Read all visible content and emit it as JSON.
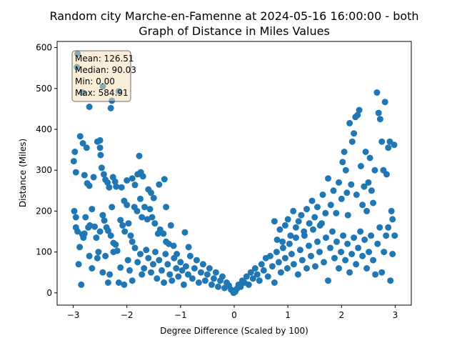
{
  "chart_data": {
    "type": "scatter",
    "title_line1": "Random city Marche-en-Famenne at 2024-05-16 16:00:00  - both",
    "title_line2": "Graph of Distance in Miles Values",
    "xlabel": "Degree Difference (Scaled by 100)",
    "ylabel": "Distance (Miles)",
    "xlim": [
      -3.3,
      3.3
    ],
    "ylim": [
      -30,
      615
    ],
    "x_ticks": [
      -3,
      -2,
      -1,
      0,
      1,
      2,
      3
    ],
    "y_ticks": [
      0,
      100,
      200,
      300,
      400,
      500,
      600
    ],
    "point_color": "#1f77b4",
    "grid": false,
    "stats": {
      "mean": "Mean: 126.51",
      "median": "Median: 90.03",
      "min": "Min: 0.00",
      "max": "Max: 584.91"
    },
    "points": [
      [
        -2.92,
        584.9
      ],
      [
        -2.93,
        552
      ],
      [
        -2.83,
        490
      ],
      [
        -2.45,
        505
      ],
      [
        -2.28,
        470
      ],
      [
        -2.3,
        452
      ],
      [
        -2.15,
        493
      ],
      [
        -2.7,
        455
      ],
      [
        -2.99,
        322
      ],
      [
        -2.97,
        345
      ],
      [
        -2.95,
        295
      ],
      [
        -2.87,
        383
      ],
      [
        -2.82,
        366
      ],
      [
        -2.79,
        288
      ],
      [
        -2.75,
        355
      ],
      [
        -2.74,
        268
      ],
      [
        -2.7,
        262
      ],
      [
        -2.62,
        283
      ],
      [
        -2.55,
        370
      ],
      [
        -2.5,
        373
      ],
      [
        -2.5,
        355
      ],
      [
        -2.49,
        337
      ],
      [
        -2.47,
        306
      ],
      [
        -2.43,
        290
      ],
      [
        -2.4,
        277
      ],
      [
        -2.36,
        270
      ],
      [
        -2.33,
        258
      ],
      [
        -2.26,
        283
      ],
      [
        -2.22,
        272
      ],
      [
        -2.2,
        260
      ],
      [
        -2.1,
        258
      ],
      [
        -2.05,
        225
      ],
      [
        -2.0,
        275
      ],
      [
        -1.9,
        280
      ],
      [
        -1.85,
        264
      ],
      [
        -1.8,
        290
      ],
      [
        -1.77,
        335
      ],
      [
        -1.74,
        295
      ],
      [
        -1.7,
        285
      ],
      [
        -1.6,
        253
      ],
      [
        -1.55,
        245
      ],
      [
        -1.5,
        232
      ],
      [
        -1.4,
        265
      ],
      [
        -1.3,
        278
      ],
      [
        -1.27,
        210
      ],
      [
        -2.98,
        200
      ],
      [
        -2.95,
        160
      ],
      [
        -2.92,
        150
      ],
      [
        -2.88,
        112
      ],
      [
        -2.83,
        143
      ],
      [
        -2.81,
        135
      ],
      [
        -2.79,
        145
      ],
      [
        -2.77,
        185
      ],
      [
        -2.72,
        160
      ],
      [
        -2.69,
        165
      ],
      [
        -2.65,
        205
      ],
      [
        -2.6,
        162
      ],
      [
        -2.57,
        135
      ],
      [
        -2.53,
        100
      ],
      [
        -2.5,
        150
      ],
      [
        -2.45,
        190
      ],
      [
        -2.42,
        177
      ],
      [
        -2.38,
        160
      ],
      [
        -2.35,
        152
      ],
      [
        -2.3,
        140
      ],
      [
        -2.28,
        210
      ],
      [
        -2.25,
        122
      ],
      [
        -2.21,
        118
      ],
      [
        -2.18,
        103
      ],
      [
        -2.12,
        178
      ],
      [
        -2.08,
        165
      ],
      [
        -2.04,
        150
      ],
      [
        -2.0,
        215
      ],
      [
        -1.97,
        170
      ],
      [
        -1.93,
        140
      ],
      [
        -1.9,
        125
      ],
      [
        -1.86,
        210
      ],
      [
        -1.81,
        200
      ],
      [
        -1.75,
        230
      ],
      [
        -1.72,
        185
      ],
      [
        -1.67,
        210
      ],
      [
        -1.62,
        180
      ],
      [
        -1.57,
        205
      ],
      [
        -1.53,
        185
      ],
      [
        -1.48,
        170
      ],
      [
        -1.42,
        145
      ],
      [
        -1.38,
        155
      ],
      [
        -1.32,
        145
      ],
      [
        -1.27,
        125
      ],
      [
        -1.22,
        120
      ],
      [
        -1.18,
        165
      ],
      [
        -1.13,
        115
      ],
      [
        -1.07,
        95
      ],
      [
        -0.92,
        148
      ],
      [
        -0.85,
        112
      ],
      [
        -2.95,
        185
      ],
      [
        -2.9,
        70
      ],
      [
        -2.85,
        20
      ],
      [
        -2.7,
        90
      ],
      [
        -2.65,
        60
      ],
      [
        -2.55,
        85
      ],
      [
        -2.45,
        50
      ],
      [
        -2.4,
        90
      ],
      [
        -2.35,
        25
      ],
      [
        -2.32,
        45
      ],
      [
        -2.25,
        100
      ],
      [
        -2.15,
        25
      ],
      [
        -2.12,
        62
      ],
      [
        -2.05,
        20
      ],
      [
        -1.98,
        80
      ],
      [
        -1.95,
        55
      ],
      [
        -1.9,
        30
      ],
      [
        -1.85,
        110
      ],
      [
        -1.8,
        75
      ],
      [
        -1.75,
        95
      ],
      [
        -1.72,
        45
      ],
      [
        -1.68,
        60
      ],
      [
        -1.64,
        105
      ],
      [
        -1.6,
        85
      ],
      [
        -1.55,
        50
      ],
      [
        -1.51,
        70
      ],
      [
        -1.47,
        100
      ],
      [
        -1.44,
        35
      ],
      [
        -1.4,
        80
      ],
      [
        -1.35,
        55
      ],
      [
        -1.31,
        25
      ],
      [
        -1.28,
        95
      ],
      [
        -1.24,
        70
      ],
      [
        -1.2,
        45
      ],
      [
        -1.16,
        30
      ],
      [
        -1.12,
        85
      ],
      [
        -1.08,
        60
      ],
      [
        -1.04,
        40
      ],
      [
        -1.0,
        75
      ],
      [
        -0.97,
        55
      ],
      [
        -0.94,
        20
      ],
      [
        -0.9,
        65
      ],
      [
        -0.86,
        45
      ],
      [
        -0.82,
        90
      ],
      [
        -0.78,
        35
      ],
      [
        -0.74,
        60
      ],
      [
        -0.7,
        80
      ],
      [
        -0.66,
        25
      ],
      [
        -0.62,
        50
      ],
      [
        -0.58,
        70
      ],
      [
        -0.54,
        30
      ],
      [
        -0.5,
        45
      ],
      [
        -0.46,
        60
      ],
      [
        -0.42,
        20
      ],
      [
        -0.38,
        35
      ],
      [
        -0.34,
        50
      ],
      [
        -0.3,
        15
      ],
      [
        -0.26,
        30
      ],
      [
        -0.22,
        40
      ],
      [
        -0.18,
        12
      ],
      [
        -0.14,
        25
      ],
      [
        -0.1,
        18
      ],
      [
        -0.06,
        8
      ],
      [
        -0.03,
        5
      ],
      [
        -0.01,
        0.0
      ],
      [
        0.02,
        3
      ],
      [
        0.05,
        10
      ],
      [
        0.08,
        20
      ],
      [
        0.12,
        15
      ],
      [
        0.15,
        30
      ],
      [
        0.19,
        25
      ],
      [
        0.23,
        40
      ],
      [
        0.27,
        20
      ],
      [
        0.31,
        50
      ],
      [
        0.35,
        35
      ],
      [
        0.39,
        60
      ],
      [
        0.43,
        45
      ],
      [
        0.47,
        30
      ],
      [
        0.51,
        70
      ],
      [
        0.55,
        55
      ],
      [
        0.59,
        85
      ],
      [
        0.63,
        40
      ],
      [
        0.67,
        90
      ],
      [
        0.71,
        65
      ],
      [
        0.75,
        25
      ],
      [
        0.79,
        100
      ],
      [
        0.83,
        75
      ],
      [
        0.87,
        50
      ],
      [
        0.91,
        110
      ],
      [
        0.95,
        85
      ],
      [
        0.99,
        60
      ],
      [
        1.03,
        120
      ],
      [
        1.07,
        95
      ],
      [
        1.11,
        70
      ],
      [
        1.15,
        135
      ],
      [
        1.19,
        45
      ],
      [
        1.23,
        105
      ],
      [
        1.27,
        80
      ],
      [
        1.31,
        140
      ],
      [
        1.35,
        60
      ],
      [
        1.39,
        115
      ],
      [
        1.43,
        90
      ],
      [
        1.47,
        155
      ],
      [
        1.51,
        65
      ],
      [
        1.55,
        125
      ],
      [
        1.59,
        100
      ],
      [
        1.63,
        170
      ],
      [
        1.67,
        75
      ],
      [
        1.71,
        135
      ],
      [
        1.75,
        30
      ],
      [
        1.79,
        110
      ],
      [
        1.83,
        150
      ],
      [
        1.87,
        85
      ],
      [
        1.91,
        125
      ],
      [
        1.95,
        60
      ],
      [
        1.99,
        100
      ],
      [
        2.03,
        140
      ],
      [
        2.07,
        80
      ],
      [
        2.11,
        120
      ],
      [
        2.15,
        50
      ],
      [
        2.19,
        95
      ],
      [
        2.23,
        135
      ],
      [
        2.27,
        70
      ],
      [
        2.31,
        110
      ],
      [
        2.35,
        150
      ],
      [
        2.39,
        90
      ],
      [
        2.43,
        130
      ],
      [
        2.47,
        60
      ],
      [
        2.51,
        100
      ],
      [
        2.55,
        140
      ],
      [
        2.59,
        80
      ],
      [
        2.63,
        45
      ],
      [
        2.67,
        120
      ],
      [
        2.71,
        160
      ],
      [
        2.75,
        50
      ],
      [
        2.79,
        100
      ],
      [
        2.83,
        140
      ],
      [
        2.87,
        160
      ],
      [
        2.91,
        30
      ],
      [
        2.95,
        95
      ],
      [
        0.75,
        175
      ],
      [
        0.8,
        130
      ],
      [
        0.85,
        155
      ],
      [
        0.9,
        125
      ],
      [
        0.95,
        165
      ],
      [
        1.0,
        180
      ],
      [
        1.05,
        140
      ],
      [
        1.1,
        200
      ],
      [
        1.15,
        160
      ],
      [
        1.2,
        175
      ],
      [
        1.25,
        190
      ],
      [
        1.3,
        150
      ],
      [
        1.35,
        205
      ],
      [
        1.4,
        170
      ],
      [
        1.45,
        225
      ],
      [
        1.5,
        185
      ],
      [
        1.55,
        210
      ],
      [
        1.6,
        165
      ],
      [
        1.65,
        240
      ],
      [
        1.7,
        195
      ],
      [
        1.75,
        280
      ],
      [
        1.8,
        215
      ],
      [
        1.85,
        250
      ],
      [
        1.9,
        195
      ],
      [
        1.95,
        270
      ],
      [
        2.0,
        230
      ],
      [
        2.02,
        320
      ],
      [
        2.05,
        345
      ],
      [
        2.08,
        300
      ],
      [
        2.1,
        245
      ],
      [
        2.12,
        190
      ],
      [
        2.15,
        415
      ],
      [
        2.18,
        265
      ],
      [
        2.2,
        370
      ],
      [
        2.23,
        390
      ],
      [
        2.26,
        430
      ],
      [
        2.28,
        240
      ],
      [
        2.3,
        435
      ],
      [
        2.33,
        447
      ],
      [
        2.36,
        310
      ],
      [
        2.39,
        215
      ],
      [
        2.42,
        260
      ],
      [
        2.45,
        345
      ],
      [
        2.47,
        200
      ],
      [
        2.5,
        270
      ],
      [
        2.53,
        330
      ],
      [
        2.56,
        250
      ],
      [
        2.59,
        220
      ],
      [
        2.62,
        300
      ],
      [
        2.66,
        490
      ],
      [
        2.69,
        440
      ],
      [
        2.72,
        425
      ],
      [
        2.75,
        370
      ],
      [
        2.78,
        300
      ],
      [
        2.81,
        467
      ],
      [
        2.84,
        290
      ],
      [
        2.87,
        355
      ],
      [
        2.9,
        370
      ],
      [
        2.93,
        200
      ],
      [
        2.95,
        180
      ],
      [
        2.98,
        362
      ],
      [
        2.99,
        140
      ]
    ]
  }
}
